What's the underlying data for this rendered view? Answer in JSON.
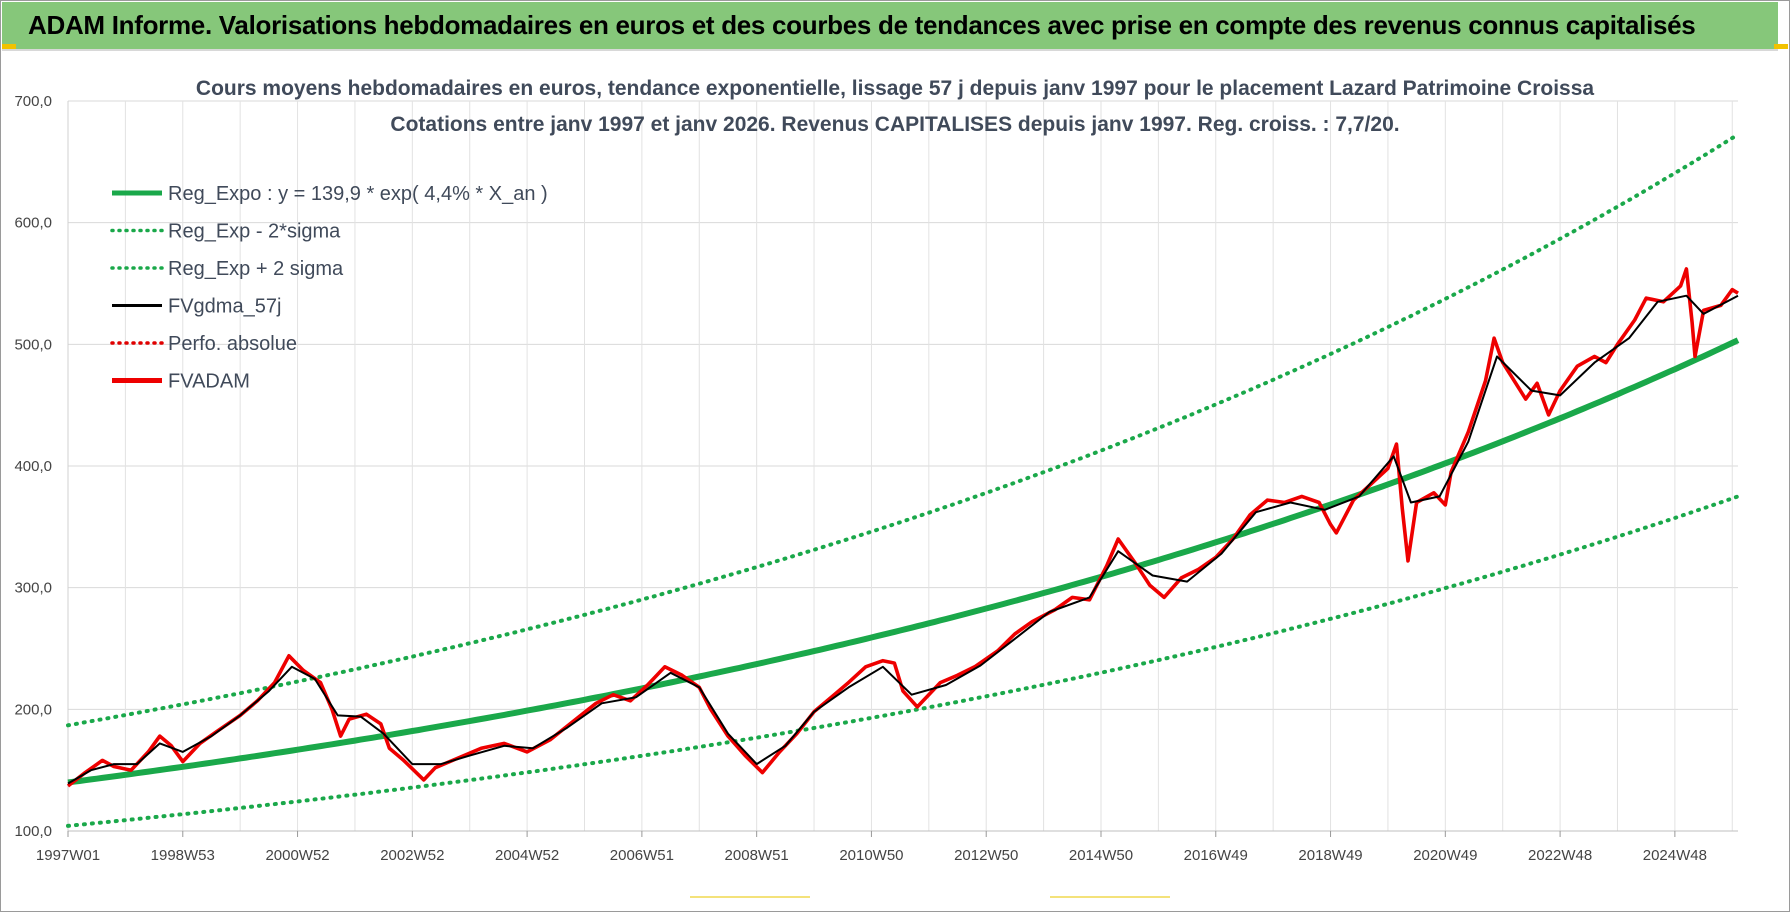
{
  "banner": {
    "title": "ADAM Informe. Valorisations hebdomadaires en euros et des courbes de tendances avec prise en compte des revenus connus capitalisés"
  },
  "chart_data": {
    "type": "line",
    "title_line1": "Cours moyens hebdomadaires en euros, tendance exponentielle, lissage 57 j depuis janv 1997 pour le placement Lazard Patrimoine Croissa",
    "title_line2": "Cotations entre janv 1997 et janv 2026. Revenus CAPITALISES depuis janv 1997. Reg. croiss. : 7,7/20.",
    "y_ticks": [
      "100,0",
      "200,0",
      "300,0",
      "400,0",
      "500,0",
      "600,0",
      "700,0"
    ],
    "ylim": [
      100,
      700
    ],
    "x_tick_labels": [
      "1997W01",
      "1998W53",
      "2000W52",
      "2002W52",
      "2004W52",
      "2006W51",
      "2008W51",
      "2010W50",
      "2012W50",
      "2014W50",
      "2016W49",
      "2018W49",
      "2020W49",
      "2022W48",
      "2024W48"
    ],
    "x_tick_years": [
      1997.0,
      1999.0,
      2001.0,
      2003.0,
      2005.0,
      2007.0,
      2009.0,
      2011.0,
      2013.0,
      2015.0,
      2017.0,
      2019.0,
      2021.0,
      2023.0,
      2025.0
    ],
    "xlim": [
      1997.0,
      2026.1
    ],
    "legend": [
      {
        "label": "Reg_Expo : y = 139,9 * exp( 4,4% *  X_an )",
        "color": "#1aa84a",
        "style": "solid-thick"
      },
      {
        "label": "Reg_Exp - 2*sigma",
        "color": "#1aa84a",
        "style": "dotted"
      },
      {
        "label": "Reg_Exp + 2 sigma",
        "color": "#1aa84a",
        "style": "dotted"
      },
      {
        "label": "FVgdma_57j",
        "color": "#000000",
        "style": "solid"
      },
      {
        "label": "Perfo. absolue",
        "color": "#e00000",
        "style": "dotted"
      },
      {
        "label": "FVADAM",
        "color": "#ee0000",
        "style": "solid-thick"
      }
    ],
    "regression": {
      "a": 139.9,
      "rate": 0.044,
      "lower_factor": 0.745,
      "upper_factor": 1.336
    },
    "series_fvadam": [
      [
        1997.0,
        137
      ],
      [
        1997.3,
        148
      ],
      [
        1997.6,
        158
      ],
      [
        1997.8,
        153
      ],
      [
        1998.1,
        150
      ],
      [
        1998.4,
        165
      ],
      [
        1998.6,
        178
      ],
      [
        1998.8,
        170
      ],
      [
        1999.0,
        157
      ],
      [
        1999.3,
        172
      ],
      [
        1999.6,
        182
      ],
      [
        2000.0,
        195
      ],
      [
        2000.3,
        207
      ],
      [
        2000.6,
        222
      ],
      [
        2000.85,
        244
      ],
      [
        2001.1,
        232
      ],
      [
        2001.4,
        222
      ],
      [
        2001.6,
        200
      ],
      [
        2001.75,
        178
      ],
      [
        2001.9,
        192
      ],
      [
        2002.2,
        196
      ],
      [
        2002.45,
        188
      ],
      [
        2002.6,
        168
      ],
      [
        2002.85,
        158
      ],
      [
        2003.2,
        142
      ],
      [
        2003.4,
        152
      ],
      [
        2003.8,
        160
      ],
      [
        2004.2,
        168
      ],
      [
        2004.6,
        172
      ],
      [
        2005.0,
        165
      ],
      [
        2005.4,
        175
      ],
      [
        2005.8,
        190
      ],
      [
        2006.2,
        205
      ],
      [
        2006.5,
        212
      ],
      [
        2006.8,
        207
      ],
      [
        2007.1,
        220
      ],
      [
        2007.4,
        235
      ],
      [
        2007.7,
        228
      ],
      [
        2008.0,
        218
      ],
      [
        2008.2,
        200
      ],
      [
        2008.5,
        178
      ],
      [
        2008.8,
        162
      ],
      [
        2009.1,
        148
      ],
      [
        2009.4,
        165
      ],
      [
        2009.7,
        180
      ],
      [
        2010.0,
        198
      ],
      [
        2010.3,
        210
      ],
      [
        2010.6,
        222
      ],
      [
        2010.9,
        235
      ],
      [
        2011.2,
        240
      ],
      [
        2011.4,
        238
      ],
      [
        2011.55,
        215
      ],
      [
        2011.8,
        202
      ],
      [
        2012.2,
        222
      ],
      [
        2012.5,
        228
      ],
      [
        2012.8,
        235
      ],
      [
        2013.2,
        248
      ],
      [
        2013.5,
        262
      ],
      [
        2013.8,
        272
      ],
      [
        2014.2,
        282
      ],
      [
        2014.5,
        292
      ],
      [
        2014.8,
        290
      ],
      [
        2015.1,
        318
      ],
      [
        2015.3,
        340
      ],
      [
        2015.6,
        320
      ],
      [
        2015.85,
        302
      ],
      [
        2016.1,
        292
      ],
      [
        2016.4,
        308
      ],
      [
        2016.7,
        315
      ],
      [
        2017.0,
        325
      ],
      [
        2017.3,
        340
      ],
      [
        2017.6,
        360
      ],
      [
        2017.9,
        372
      ],
      [
        2018.2,
        370
      ],
      [
        2018.5,
        375
      ],
      [
        2018.8,
        370
      ],
      [
        2019.0,
        352
      ],
      [
        2019.1,
        345
      ],
      [
        2019.4,
        372
      ],
      [
        2019.7,
        385
      ],
      [
        2020.0,
        398
      ],
      [
        2020.15,
        418
      ],
      [
        2020.25,
        365
      ],
      [
        2020.35,
        322
      ],
      [
        2020.5,
        370
      ],
      [
        2020.8,
        378
      ],
      [
        2021.0,
        368
      ],
      [
        2021.1,
        395
      ],
      [
        2021.4,
        428
      ],
      [
        2021.7,
        470
      ],
      [
        2021.85,
        505
      ],
      [
        2022.0,
        485
      ],
      [
        2022.2,
        470
      ],
      [
        2022.4,
        455
      ],
      [
        2022.6,
        468
      ],
      [
        2022.8,
        442
      ],
      [
        2023.0,
        462
      ],
      [
        2023.3,
        482
      ],
      [
        2023.6,
        490
      ],
      [
        2023.8,
        485
      ],
      [
        2024.0,
        500
      ],
      [
        2024.3,
        520
      ],
      [
        2024.5,
        538
      ],
      [
        2024.8,
        535
      ],
      [
        2025.1,
        548
      ],
      [
        2025.2,
        562
      ],
      [
        2025.3,
        518
      ],
      [
        2025.35,
        490
      ],
      [
        2025.5,
        528
      ],
      [
        2025.8,
        532
      ],
      [
        2026.0,
        545
      ],
      [
        2026.1,
        542
      ]
    ],
    "series_fvgdma_57j": [
      [
        1997.0,
        139
      ],
      [
        1997.4,
        150
      ],
      [
        1997.8,
        155
      ],
      [
        1998.2,
        155
      ],
      [
        1998.6,
        172
      ],
      [
        1999.0,
        165
      ],
      [
        1999.5,
        178
      ],
      [
        2000.0,
        195
      ],
      [
        2000.5,
        215
      ],
      [
        2000.9,
        235
      ],
      [
        2001.3,
        225
      ],
      [
        2001.7,
        195
      ],
      [
        2002.1,
        194
      ],
      [
        2002.5,
        180
      ],
      [
        2003.0,
        155
      ],
      [
        2003.5,
        155
      ],
      [
        2004.0,
        162
      ],
      [
        2004.6,
        170
      ],
      [
        2005.1,
        168
      ],
      [
        2005.7,
        185
      ],
      [
        2006.3,
        205
      ],
      [
        2006.9,
        210
      ],
      [
        2007.5,
        230
      ],
      [
        2008.0,
        218
      ],
      [
        2008.5,
        180
      ],
      [
        2009.0,
        155
      ],
      [
        2009.5,
        170
      ],
      [
        2010.0,
        198
      ],
      [
        2010.6,
        218
      ],
      [
        2011.2,
        235
      ],
      [
        2011.7,
        212
      ],
      [
        2012.3,
        220
      ],
      [
        2012.9,
        236
      ],
      [
        2013.5,
        258
      ],
      [
        2014.1,
        280
      ],
      [
        2014.8,
        292
      ],
      [
        2015.3,
        330
      ],
      [
        2015.9,
        310
      ],
      [
        2016.5,
        305
      ],
      [
        2017.1,
        328
      ],
      [
        2017.7,
        362
      ],
      [
        2018.3,
        370
      ],
      [
        2018.9,
        364
      ],
      [
        2019.5,
        375
      ],
      [
        2020.1,
        408
      ],
      [
        2020.4,
        370
      ],
      [
        2020.9,
        375
      ],
      [
        2021.4,
        420
      ],
      [
        2021.9,
        490
      ],
      [
        2022.5,
        462
      ],
      [
        2023.0,
        458
      ],
      [
        2023.6,
        485
      ],
      [
        2024.2,
        505
      ],
      [
        2024.7,
        535
      ],
      [
        2025.2,
        540
      ],
      [
        2025.5,
        525
      ],
      [
        2026.1,
        540
      ]
    ]
  }
}
